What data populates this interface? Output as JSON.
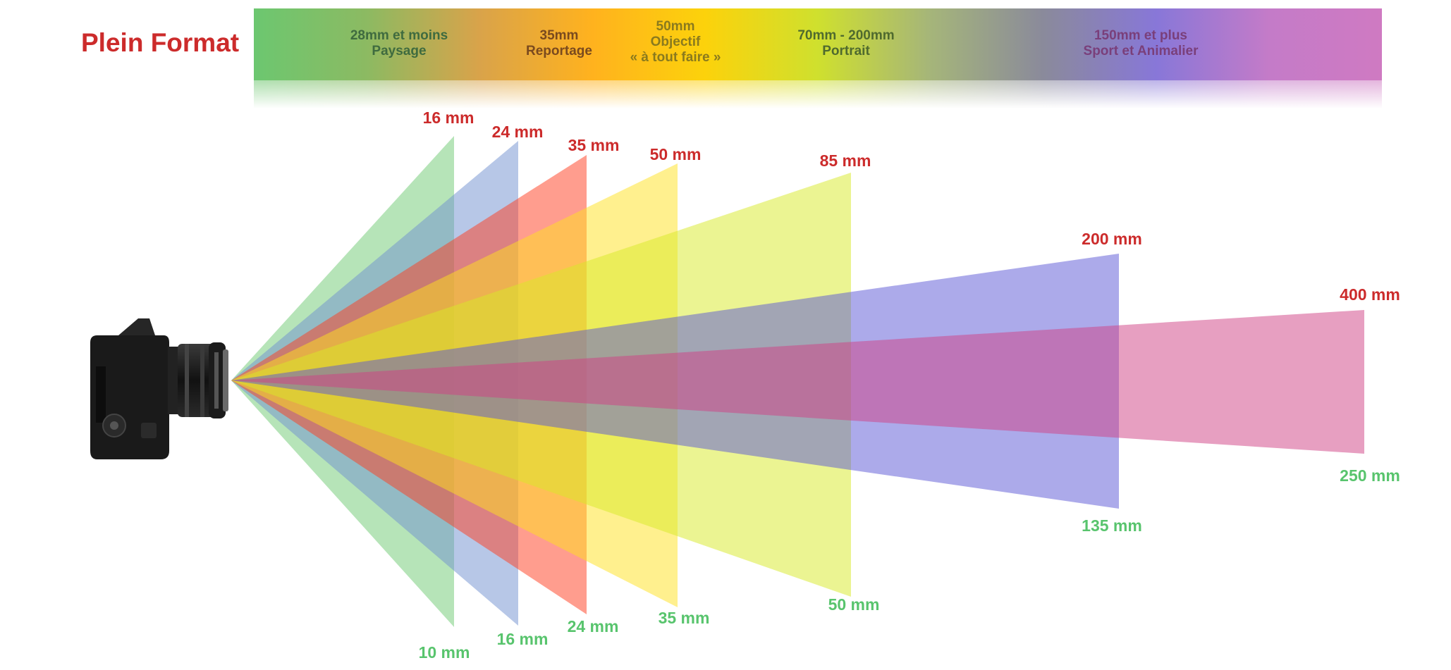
{
  "title": "Plein Format",
  "colors": {
    "title": "#cc2b2b",
    "top_label": "#cc2b2b",
    "bottom_label": "#58c46d",
    "band_gradient": [
      "#6cc770",
      "#8cba62",
      "#d9a34a",
      "#ffb21e",
      "#fcd20b",
      "#cfe02e",
      "#a5b57a",
      "#8a8a9b",
      "#8877d8",
      "#c47bc8",
      "#cf7ac2"
    ]
  },
  "band_labels": [
    {
      "lines": [
        "28mm et moins",
        "Paysage"
      ],
      "color": "#3f6b3f"
    },
    {
      "lines": [
        "35mm",
        "Reportage"
      ],
      "color": "#7a4a1e"
    },
    {
      "lines": [
        "50mm",
        "Objectif",
        "« à tout faire »"
      ],
      "color": "#8a7a1e"
    },
    {
      "lines": [
        "70mm - 200mm",
        "Portrait"
      ],
      "color": "#4f6a2e"
    },
    {
      "lines": [
        "150mm et plus",
        "Sport et Animalier"
      ],
      "color": "#7a3f7a"
    }
  ],
  "fields_of_view": [
    {
      "top": "16 mm",
      "bottom": "10 mm",
      "color": "#6dca71"
    },
    {
      "top": "24 mm",
      "bottom": "16 mm",
      "color": "#6f8fcf"
    },
    {
      "top": "35 mm",
      "bottom": "24 mm",
      "color": "#ff3b1e"
    },
    {
      "top": "50 mm",
      "bottom": "35 mm",
      "color": "#ffe21e"
    },
    {
      "top": "85 mm",
      "bottom": "50 mm",
      "color": "#d7ea25"
    },
    {
      "top": "200 mm",
      "bottom": "135 mm",
      "color": "#5a55d6"
    },
    {
      "top": "400 mm",
      "bottom": "250 mm",
      "color": "#cf3f83"
    }
  ]
}
